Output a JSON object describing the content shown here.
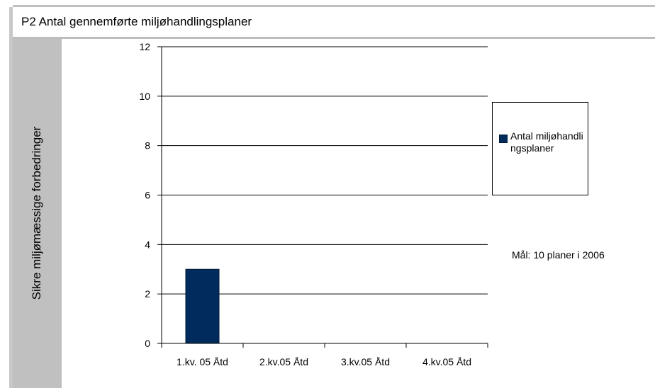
{
  "title": "P2 Antal gennemførte miljøhandlingsplaner",
  "side_label": "Sikre miljømæssige forbedringer",
  "note": "Mål: 10 planer i 2006",
  "colors": {
    "bar": "#002b5c",
    "side_band": "#c0c0c0",
    "frame_border": "#bdbdbd"
  },
  "chart_data": {
    "type": "bar",
    "categories": [
      "1.kv. 05 Åtd",
      "2.kv.05 Åtd",
      "3.kv.05 Åtd",
      "4.kv.05 Åtd"
    ],
    "series": [
      {
        "name": "Antal miljøhandlingsplaner",
        "values": [
          3,
          0,
          0,
          0
        ]
      }
    ],
    "ylim": [
      0,
      12
    ],
    "yticks": [
      0,
      2,
      4,
      6,
      8,
      10,
      12
    ],
    "grid": true,
    "legend": "right"
  }
}
